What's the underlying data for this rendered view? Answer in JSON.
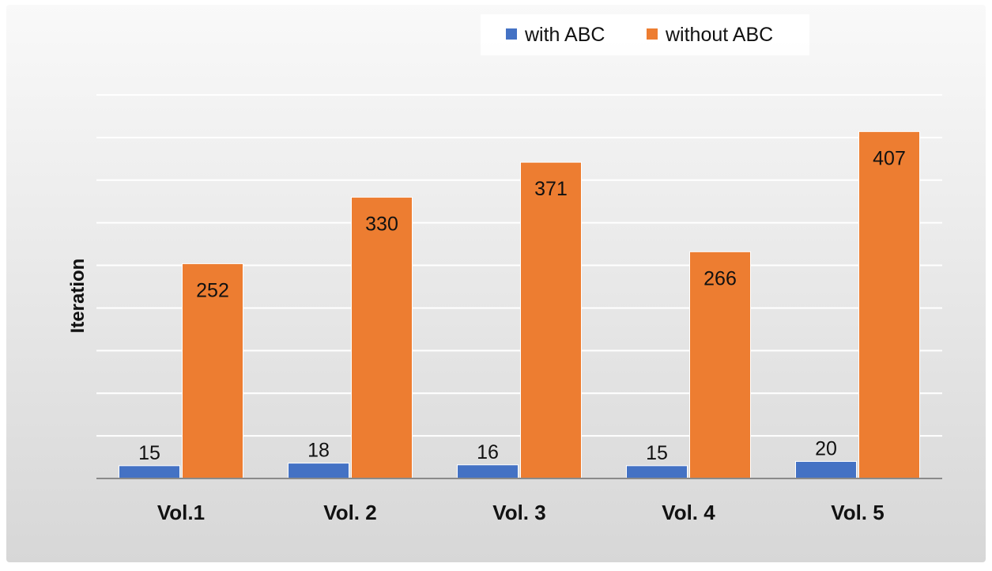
{
  "chart_data": {
    "type": "bar",
    "categories": [
      "Vol.1",
      "Vol. 2",
      "Vol. 3",
      "Vol. 4",
      "Vol. 5"
    ],
    "series": [
      {
        "name": "with ABC",
        "values": [
          15,
          18,
          16,
          15,
          20
        ],
        "color": "#4472c4"
      },
      {
        "name": "without ABC",
        "values": [
          252,
          330,
          371,
          266,
          407
        ],
        "color": "#ed7d31"
      }
    ],
    "title": "",
    "xlabel": "",
    "ylabel": "Iteration",
    "ylim": [
      0,
      450
    ],
    "y_gridline_step": 50,
    "grid": true,
    "legend_position": "top-right",
    "data_labels": true,
    "colors": {
      "background_top": "#f9f9f9",
      "background_bottom": "#d7d7d7",
      "gridline": "#ffffff",
      "axis_line": "#8a8a8a",
      "text": "#111111"
    }
  }
}
